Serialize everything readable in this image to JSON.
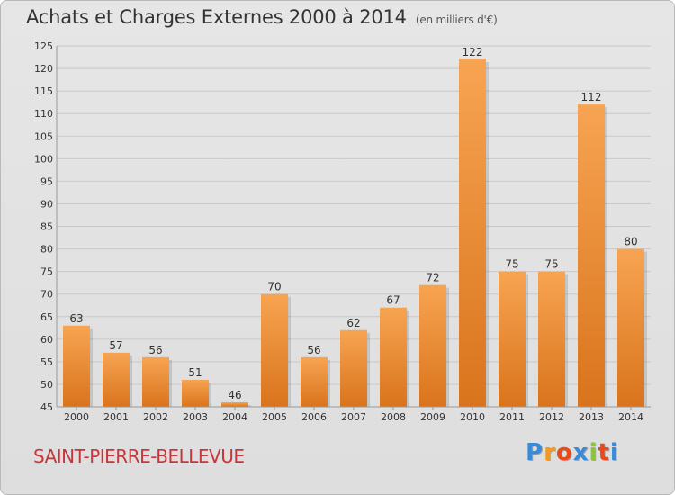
{
  "header": {
    "title": "Achats et Charges Externes 2000 à 2014",
    "unit": "(en milliers d'€)"
  },
  "footer": {
    "city": "SAINT-PIERRE-BELLEVUE",
    "brand_letters": [
      "P",
      "r",
      "o",
      "x",
      "i",
      "t",
      "i"
    ]
  },
  "colors": {
    "bar_top": "#f7a452",
    "bar_bottom": "#d9741c",
    "grid": "#c8c8c8",
    "city": "#c8353a",
    "brand": [
      "#3a8ad8",
      "#f39a1e",
      "#e8491d",
      "#3a8ad8",
      "#8cc43c",
      "#e8491d",
      "#3a8ad8"
    ]
  },
  "chart_data": {
    "type": "bar",
    "title": "Achats et Charges Externes 2000 à 2014",
    "subtitle": "(en milliers d'€)",
    "xlabel": "",
    "ylabel": "",
    "categories": [
      "2000",
      "2001",
      "2002",
      "2003",
      "2004",
      "2005",
      "2006",
      "2007",
      "2008",
      "2009",
      "2010",
      "2011",
      "2012",
      "2013",
      "2014"
    ],
    "values": [
      63,
      57,
      56,
      51,
      46,
      70,
      56,
      62,
      67,
      72,
      122,
      75,
      75,
      112,
      80
    ],
    "ylim": [
      45,
      125
    ],
    "yticks": [
      45,
      50,
      55,
      60,
      65,
      70,
      75,
      80,
      85,
      90,
      95,
      100,
      105,
      110,
      115,
      120,
      125
    ],
    "grid": true,
    "data_labels": true
  }
}
